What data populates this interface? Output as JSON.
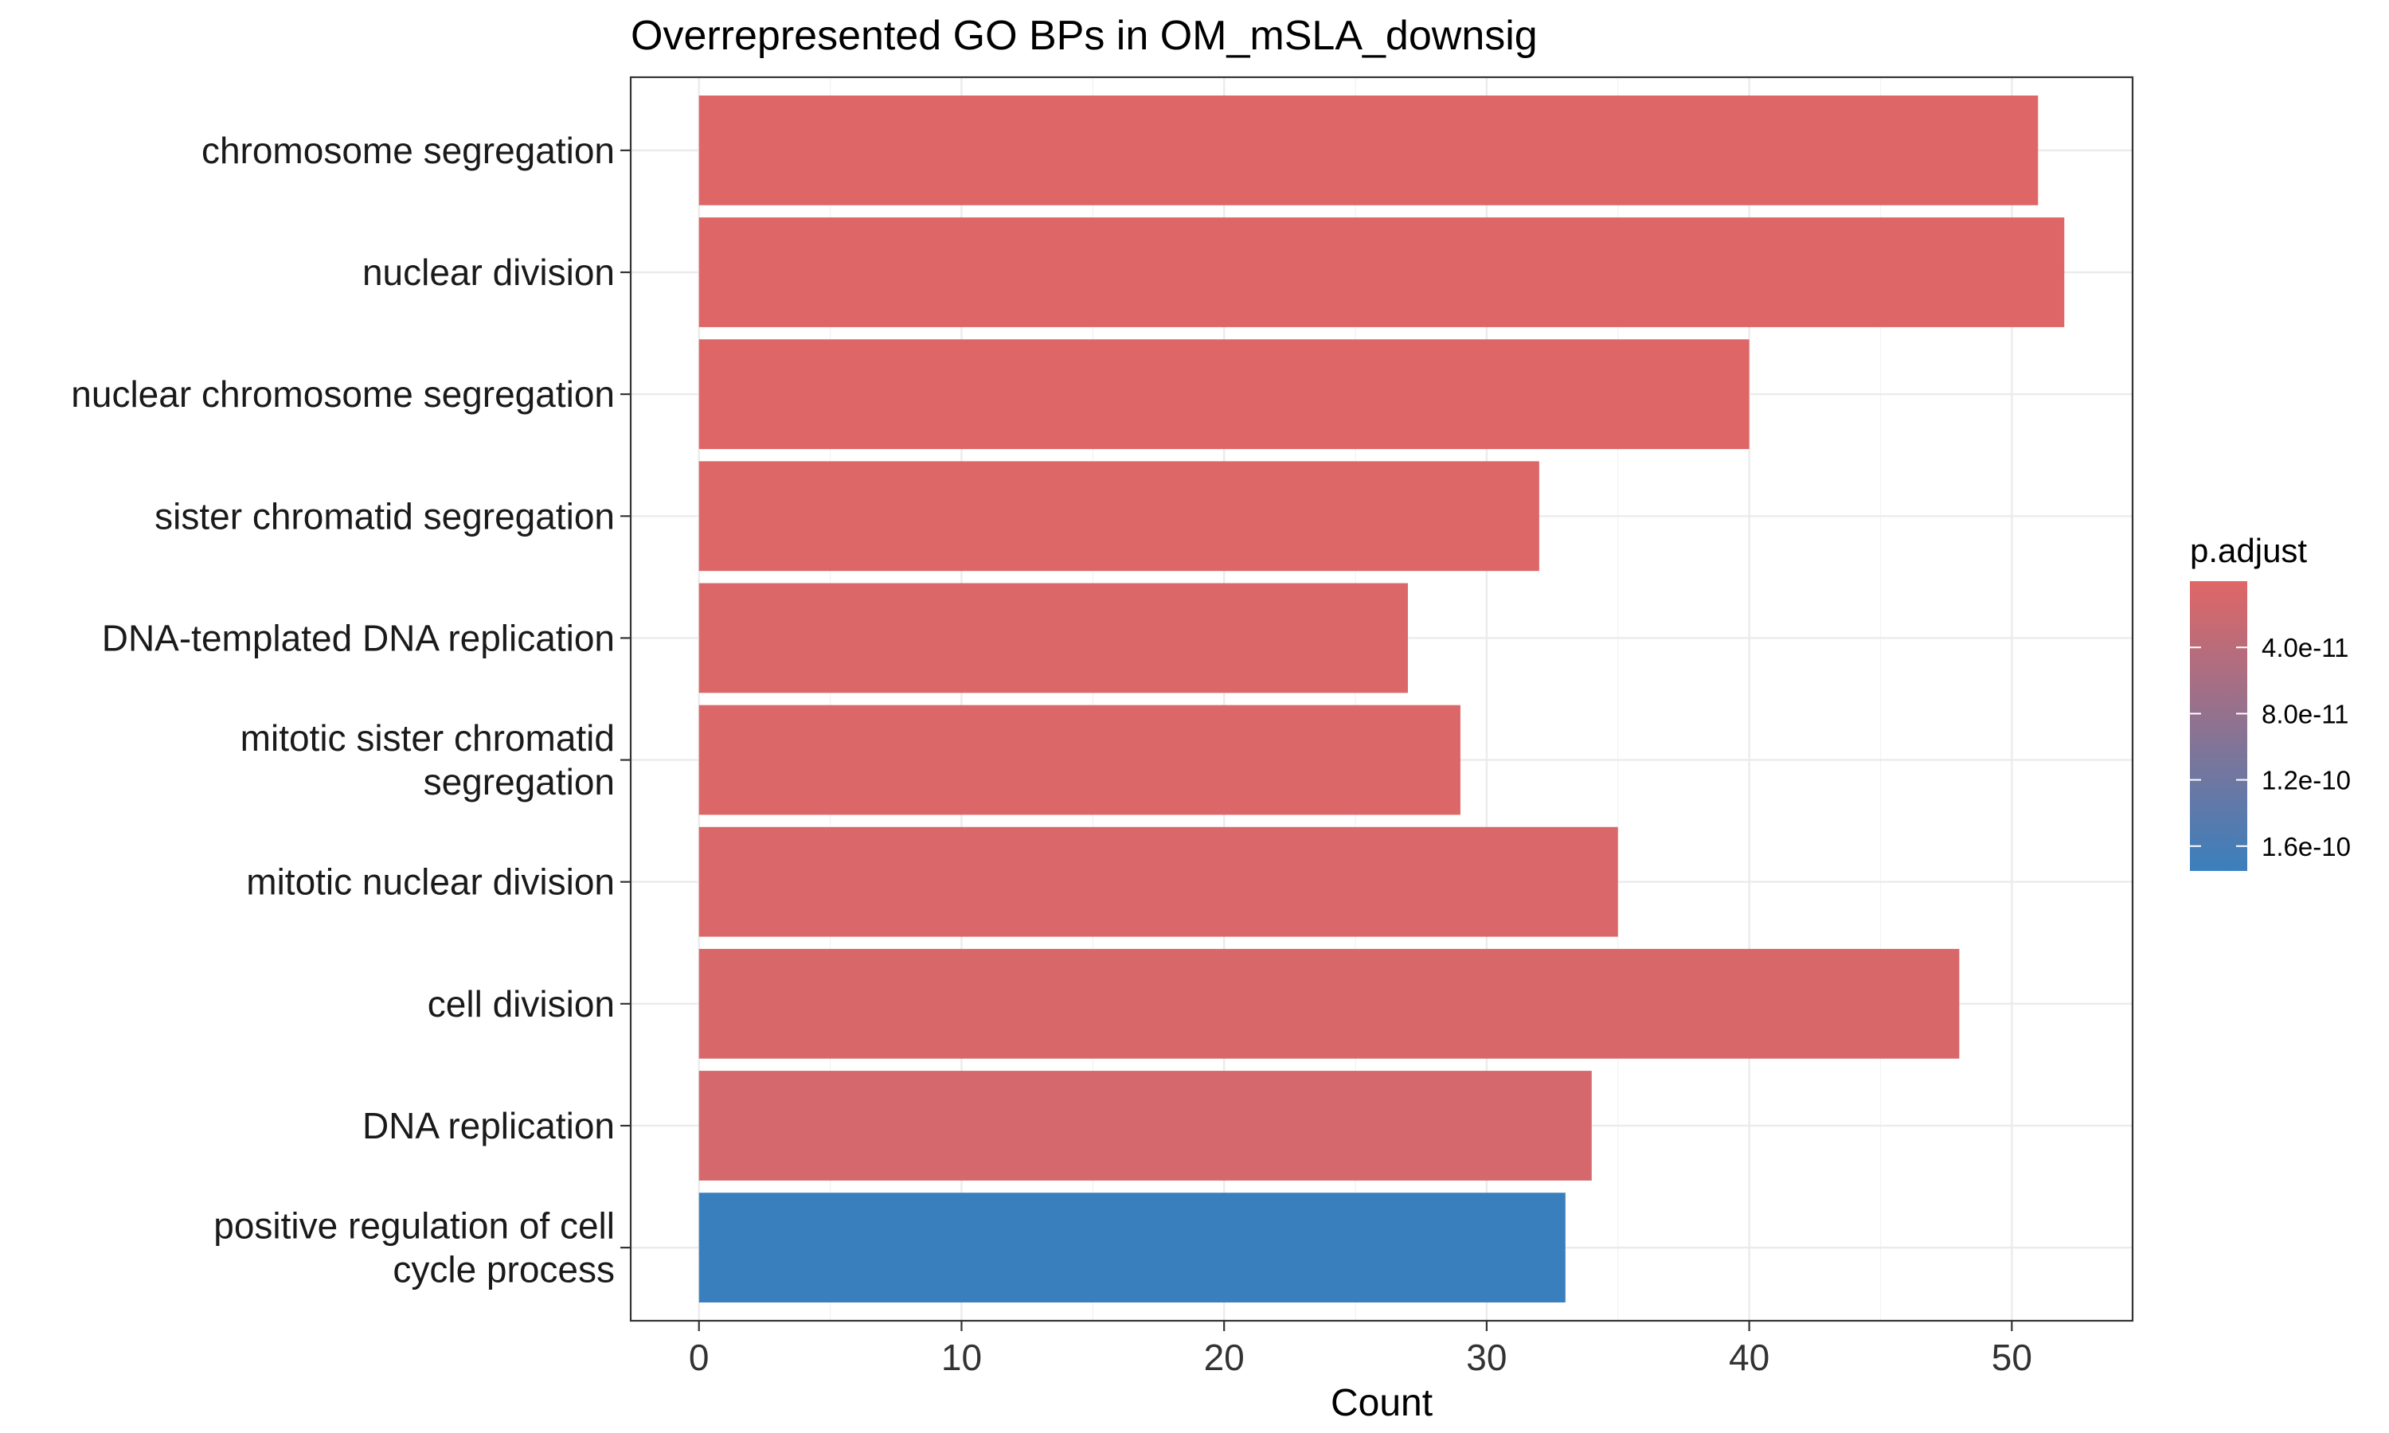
{
  "chart_data": {
    "type": "bar",
    "orientation": "horizontal",
    "title": "Overrepresented GO BPs in OM_mSLA_downsig",
    "xlabel": "Count",
    "ylabel": "",
    "xlim": [
      -2.6,
      54.6
    ],
    "x_ticks": [
      0,
      10,
      20,
      30,
      40,
      50
    ],
    "grid": true,
    "categories": [
      [
        "chromosome segregation"
      ],
      [
        "nuclear division"
      ],
      [
        "nuclear chromosome segregation"
      ],
      [
        "sister chromatid segregation"
      ],
      [
        "DNA-templated DNA replication"
      ],
      [
        "mitotic sister chromatid",
        "segregation"
      ],
      [
        "mitotic nuclear division"
      ],
      [
        "cell division"
      ],
      [
        "DNA replication"
      ],
      [
        "positive regulation of cell",
        "cycle process"
      ]
    ],
    "values": [
      51,
      52,
      40,
      32,
      27,
      29,
      35,
      48,
      34,
      33
    ],
    "p_adjust": [
      1e-12,
      1e-12,
      2e-12,
      3e-12,
      4e-12,
      5e-12,
      6e-12,
      8e-12,
      1.2e-11,
      1.75e-10
    ],
    "legend": {
      "title": "p.adjust",
      "placement": "right",
      "range": [
        0,
        1.75e-10
      ],
      "ticks": [
        4e-11,
        8e-11,
        1.2e-10,
        1.6e-10
      ],
      "tick_labels": [
        "4.0e-11",
        "8.0e-11",
        "1.2e-10",
        "1.6e-10"
      ],
      "low_color": "#e06666",
      "high_color": "#3a7fbd"
    }
  }
}
